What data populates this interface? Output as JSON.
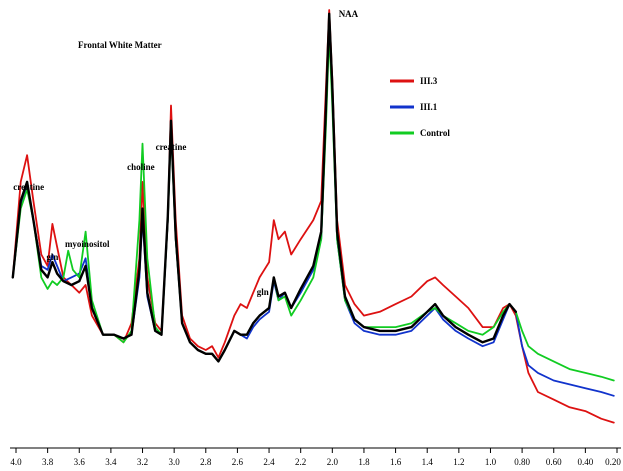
{
  "chart_data": {
    "type": "line",
    "title": "Frontal White Matter",
    "xlabel": "",
    "ylabel": "",
    "xlim": [
      4.0,
      0.2
    ],
    "x_ticks": [
      "4.0",
      "3.8",
      "3.6",
      "3.4",
      "3.2",
      "3.0",
      "2.8",
      "2.6",
      "2.4",
      "2.2",
      "2.0",
      "1.8",
      "1.6",
      "1.4",
      "1.2",
      "1.0",
      "0.80",
      "0.60",
      "0.40",
      "0.20"
    ],
    "grid": false,
    "legend_position": "top-right",
    "annotations": [
      {
        "text": "creatine",
        "x": 3.92
      },
      {
        "text": "gln",
        "x": 3.77
      },
      {
        "text": "myoinositol",
        "x": 3.55
      },
      {
        "text": "choline",
        "x": 3.21
      },
      {
        "text": "creatine",
        "x": 3.02
      },
      {
        "text": "gln",
        "x": 2.44
      },
      {
        "text": "NAA",
        "x": 2.01
      }
    ],
    "series": [
      {
        "name": "III.3",
        "color": "#dd1111",
        "points": [
          [
            4.02,
            0.3
          ],
          [
            3.97,
            0.55
          ],
          [
            3.93,
            0.62
          ],
          [
            3.89,
            0.5
          ],
          [
            3.84,
            0.36
          ],
          [
            3.8,
            0.33
          ],
          [
            3.77,
            0.44
          ],
          [
            3.74,
            0.38
          ],
          [
            3.7,
            0.3
          ],
          [
            3.65,
            0.28
          ],
          [
            3.6,
            0.26
          ],
          [
            3.56,
            0.28
          ],
          [
            3.52,
            0.2
          ],
          [
            3.45,
            0.15
          ],
          [
            3.38,
            0.15
          ],
          [
            3.32,
            0.13
          ],
          [
            3.27,
            0.18
          ],
          [
            3.22,
            0.35
          ],
          [
            3.2,
            0.55
          ],
          [
            3.17,
            0.3
          ],
          [
            3.12,
            0.18
          ],
          [
            3.08,
            0.16
          ],
          [
            3.04,
            0.45
          ],
          [
            3.02,
            0.75
          ],
          [
            2.99,
            0.45
          ],
          [
            2.95,
            0.2
          ],
          [
            2.9,
            0.14
          ],
          [
            2.85,
            0.12
          ],
          [
            2.8,
            0.11
          ],
          [
            2.76,
            0.12
          ],
          [
            2.72,
            0.09
          ],
          [
            2.68,
            0.13
          ],
          [
            2.62,
            0.2
          ],
          [
            2.58,
            0.23
          ],
          [
            2.54,
            0.22
          ],
          [
            2.5,
            0.26
          ],
          [
            2.46,
            0.3
          ],
          [
            2.43,
            0.32
          ],
          [
            2.4,
            0.34
          ],
          [
            2.37,
            0.45
          ],
          [
            2.34,
            0.4
          ],
          [
            2.3,
            0.42
          ],
          [
            2.26,
            0.36
          ],
          [
            2.2,
            0.4
          ],
          [
            2.12,
            0.45
          ],
          [
            2.07,
            0.5
          ],
          [
            2.04,
            0.8
          ],
          [
            2.02,
            1.0
          ],
          [
            2.0,
            0.82
          ],
          [
            1.97,
            0.45
          ],
          [
            1.92,
            0.28
          ],
          [
            1.86,
            0.23
          ],
          [
            1.8,
            0.2
          ],
          [
            1.7,
            0.21
          ],
          [
            1.6,
            0.23
          ],
          [
            1.5,
            0.25
          ],
          [
            1.4,
            0.29
          ],
          [
            1.35,
            0.3
          ],
          [
            1.3,
            0.28
          ],
          [
            1.22,
            0.25
          ],
          [
            1.14,
            0.22
          ],
          [
            1.05,
            0.17
          ],
          [
            0.98,
            0.17
          ],
          [
            0.92,
            0.22
          ],
          [
            0.88,
            0.23
          ],
          [
            0.84,
            0.2
          ],
          [
            0.8,
            0.12
          ],
          [
            0.76,
            0.05
          ],
          [
            0.7,
            0.0
          ],
          [
            0.6,
            -0.02
          ],
          [
            0.5,
            -0.04
          ],
          [
            0.4,
            -0.05
          ],
          [
            0.3,
            -0.07
          ],
          [
            0.22,
            -0.08
          ]
        ]
      },
      {
        "name": "III.1",
        "color": "#1133cc",
        "points": [
          [
            4.02,
            0.3
          ],
          [
            3.97,
            0.49
          ],
          [
            3.93,
            0.54
          ],
          [
            3.89,
            0.45
          ],
          [
            3.84,
            0.33
          ],
          [
            3.8,
            0.32
          ],
          [
            3.77,
            0.36
          ],
          [
            3.74,
            0.33
          ],
          [
            3.7,
            0.29
          ],
          [
            3.65,
            0.3
          ],
          [
            3.6,
            0.31
          ],
          [
            3.56,
            0.35
          ],
          [
            3.52,
            0.22
          ],
          [
            3.45,
            0.15
          ],
          [
            3.38,
            0.15
          ],
          [
            3.32,
            0.14
          ],
          [
            3.27,
            0.15
          ],
          [
            3.22,
            0.3
          ],
          [
            3.2,
            0.46
          ],
          [
            3.17,
            0.25
          ],
          [
            3.12,
            0.16
          ],
          [
            3.08,
            0.15
          ],
          [
            3.04,
            0.45
          ],
          [
            3.02,
            0.7
          ],
          [
            2.99,
            0.4
          ],
          [
            2.95,
            0.18
          ],
          [
            2.9,
            0.13
          ],
          [
            2.85,
            0.11
          ],
          [
            2.8,
            0.1
          ],
          [
            2.76,
            0.1
          ],
          [
            2.72,
            0.08
          ],
          [
            2.68,
            0.11
          ],
          [
            2.62,
            0.16
          ],
          [
            2.58,
            0.15
          ],
          [
            2.54,
            0.14
          ],
          [
            2.5,
            0.17
          ],
          [
            2.46,
            0.19
          ],
          [
            2.43,
            0.2
          ],
          [
            2.4,
            0.21
          ],
          [
            2.37,
            0.29
          ],
          [
            2.34,
            0.24
          ],
          [
            2.3,
            0.26
          ],
          [
            2.26,
            0.22
          ],
          [
            2.2,
            0.26
          ],
          [
            2.12,
            0.32
          ],
          [
            2.07,
            0.4
          ],
          [
            2.04,
            0.72
          ],
          [
            2.02,
            0.97
          ],
          [
            2.0,
            0.78
          ],
          [
            1.97,
            0.4
          ],
          [
            1.92,
            0.24
          ],
          [
            1.86,
            0.18
          ],
          [
            1.8,
            0.16
          ],
          [
            1.7,
            0.15
          ],
          [
            1.6,
            0.15
          ],
          [
            1.5,
            0.16
          ],
          [
            1.4,
            0.2
          ],
          [
            1.35,
            0.22
          ],
          [
            1.3,
            0.19
          ],
          [
            1.22,
            0.16
          ],
          [
            1.14,
            0.14
          ],
          [
            1.05,
            0.12
          ],
          [
            0.98,
            0.13
          ],
          [
            0.92,
            0.19
          ],
          [
            0.88,
            0.23
          ],
          [
            0.84,
            0.21
          ],
          [
            0.8,
            0.12
          ],
          [
            0.76,
            0.07
          ],
          [
            0.7,
            0.05
          ],
          [
            0.6,
            0.03
          ],
          [
            0.5,
            0.02
          ],
          [
            0.4,
            0.01
          ],
          [
            0.3,
            0.0
          ],
          [
            0.22,
            -0.01
          ]
        ]
      },
      {
        "name": "Control",
        "color": "#11cc22",
        "points": [
          [
            4.02,
            0.3
          ],
          [
            3.97,
            0.48
          ],
          [
            3.93,
            0.53
          ],
          [
            3.89,
            0.45
          ],
          [
            3.84,
            0.3
          ],
          [
            3.8,
            0.27
          ],
          [
            3.77,
            0.29
          ],
          [
            3.74,
            0.28
          ],
          [
            3.7,
            0.3
          ],
          [
            3.67,
            0.37
          ],
          [
            3.64,
            0.32
          ],
          [
            3.6,
            0.3
          ],
          [
            3.56,
            0.42
          ],
          [
            3.52,
            0.24
          ],
          [
            3.45,
            0.15
          ],
          [
            3.38,
            0.15
          ],
          [
            3.32,
            0.13
          ],
          [
            3.27,
            0.16
          ],
          [
            3.22,
            0.45
          ],
          [
            3.2,
            0.65
          ],
          [
            3.17,
            0.35
          ],
          [
            3.12,
            0.17
          ],
          [
            3.08,
            0.15
          ],
          [
            3.04,
            0.45
          ],
          [
            3.02,
            0.69
          ],
          [
            2.99,
            0.4
          ],
          [
            2.95,
            0.18
          ],
          [
            2.9,
            0.13
          ],
          [
            2.85,
            0.11
          ],
          [
            2.8,
            0.1
          ],
          [
            2.76,
            0.1
          ],
          [
            2.72,
            0.08
          ],
          [
            2.68,
            0.11
          ],
          [
            2.62,
            0.16
          ],
          [
            2.58,
            0.15
          ],
          [
            2.54,
            0.15
          ],
          [
            2.5,
            0.18
          ],
          [
            2.46,
            0.2
          ],
          [
            2.43,
            0.21
          ],
          [
            2.4,
            0.22
          ],
          [
            2.37,
            0.3
          ],
          [
            2.34,
            0.24
          ],
          [
            2.3,
            0.25
          ],
          [
            2.26,
            0.2
          ],
          [
            2.2,
            0.24
          ],
          [
            2.12,
            0.3
          ],
          [
            2.07,
            0.4
          ],
          [
            2.04,
            0.7
          ],
          [
            2.02,
            0.94
          ],
          [
            2.0,
            0.75
          ],
          [
            1.97,
            0.4
          ],
          [
            1.92,
            0.24
          ],
          [
            1.86,
            0.19
          ],
          [
            1.8,
            0.17
          ],
          [
            1.7,
            0.17
          ],
          [
            1.6,
            0.17
          ],
          [
            1.5,
            0.18
          ],
          [
            1.4,
            0.21
          ],
          [
            1.35,
            0.22
          ],
          [
            1.3,
            0.2
          ],
          [
            1.22,
            0.18
          ],
          [
            1.14,
            0.16
          ],
          [
            1.05,
            0.15
          ],
          [
            0.98,
            0.17
          ],
          [
            0.92,
            0.21
          ],
          [
            0.88,
            0.23
          ],
          [
            0.84,
            0.21
          ],
          [
            0.8,
            0.16
          ],
          [
            0.76,
            0.12
          ],
          [
            0.7,
            0.1
          ],
          [
            0.6,
            0.08
          ],
          [
            0.5,
            0.06
          ],
          [
            0.4,
            0.05
          ],
          [
            0.3,
            0.04
          ],
          [
            0.22,
            0.03
          ]
        ]
      },
      {
        "name": "",
        "color": "#000000",
        "points": [
          [
            4.02,
            0.3
          ],
          [
            3.97,
            0.5
          ],
          [
            3.93,
            0.55
          ],
          [
            3.89,
            0.45
          ],
          [
            3.84,
            0.32
          ],
          [
            3.8,
            0.3
          ],
          [
            3.77,
            0.34
          ],
          [
            3.74,
            0.31
          ],
          [
            3.7,
            0.29
          ],
          [
            3.65,
            0.28
          ],
          [
            3.6,
            0.29
          ],
          [
            3.56,
            0.33
          ],
          [
            3.52,
            0.22
          ],
          [
            3.45,
            0.15
          ],
          [
            3.38,
            0.15
          ],
          [
            3.32,
            0.14
          ],
          [
            3.27,
            0.15
          ],
          [
            3.22,
            0.32
          ],
          [
            3.2,
            0.48
          ],
          [
            3.17,
            0.26
          ],
          [
            3.12,
            0.16
          ],
          [
            3.08,
            0.15
          ],
          [
            3.04,
            0.46
          ],
          [
            3.02,
            0.71
          ],
          [
            2.99,
            0.41
          ],
          [
            2.95,
            0.18
          ],
          [
            2.9,
            0.13
          ],
          [
            2.85,
            0.11
          ],
          [
            2.8,
            0.1
          ],
          [
            2.76,
            0.1
          ],
          [
            2.72,
            0.08
          ],
          [
            2.68,
            0.11
          ],
          [
            2.62,
            0.16
          ],
          [
            2.58,
            0.15
          ],
          [
            2.54,
            0.15
          ],
          [
            2.5,
            0.18
          ],
          [
            2.46,
            0.2
          ],
          [
            2.43,
            0.21
          ],
          [
            2.4,
            0.22
          ],
          [
            2.37,
            0.3
          ],
          [
            2.34,
            0.25
          ],
          [
            2.3,
            0.26
          ],
          [
            2.26,
            0.22
          ],
          [
            2.2,
            0.27
          ],
          [
            2.12,
            0.33
          ],
          [
            2.07,
            0.42
          ],
          [
            2.04,
            0.75
          ],
          [
            2.02,
            0.99
          ],
          [
            2.0,
            0.8
          ],
          [
            1.97,
            0.42
          ],
          [
            1.92,
            0.25
          ],
          [
            1.86,
            0.19
          ],
          [
            1.8,
            0.17
          ],
          [
            1.7,
            0.16
          ],
          [
            1.6,
            0.16
          ],
          [
            1.5,
            0.17
          ],
          [
            1.4,
            0.21
          ],
          [
            1.35,
            0.23
          ],
          [
            1.3,
            0.2
          ],
          [
            1.22,
            0.17
          ],
          [
            1.14,
            0.15
          ],
          [
            1.05,
            0.13
          ],
          [
            0.98,
            0.14
          ],
          [
            0.92,
            0.2
          ],
          [
            0.88,
            0.23
          ],
          [
            0.84,
            0.21
          ]
        ]
      }
    ]
  }
}
